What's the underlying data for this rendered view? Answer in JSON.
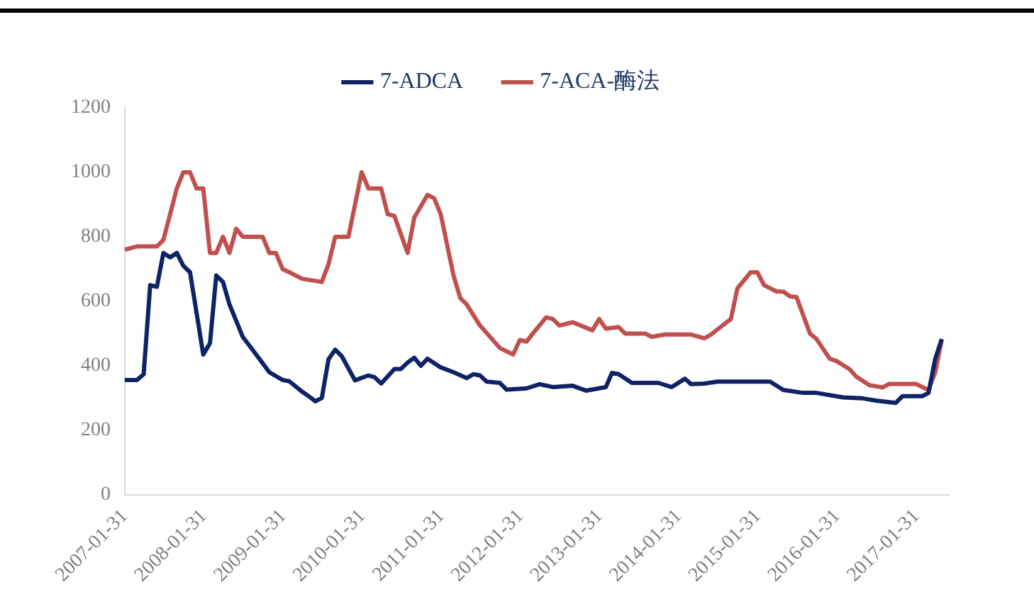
{
  "chart_data": {
    "type": "line",
    "xlim": [
      "2007-01-31",
      "2017-06-30"
    ],
    "xticks": [
      "2007-01-31",
      "2008-01-31",
      "2009-01-31",
      "2010-01-31",
      "2011-01-31",
      "2012-01-31",
      "2013-01-31",
      "2014-01-31",
      "2015-01-31",
      "2016-01-31",
      "2017-01-31"
    ],
    "ylim": [
      0,
      1200
    ],
    "yticks": [
      0,
      200,
      400,
      600,
      800,
      1000,
      1200
    ],
    "grid": false,
    "legend": "top",
    "marker": "none",
    "line_style": "solid",
    "series": [
      {
        "name": "7-ADCA",
        "color": "#0d2366",
        "x": [
          "2007-01-31",
          "2007-03-28",
          "2007-04-28",
          "2007-05-28",
          "2007-06-28",
          "2007-07-28",
          "2007-08-28",
          "2007-09-28",
          "2007-10-28",
          "2007-11-28",
          "2008-01-28",
          "2008-02-28",
          "2008-03-28",
          "2008-04-28",
          "2008-05-28",
          "2008-07-28",
          "2008-09-28",
          "2008-11-28",
          "2009-01-28",
          "2009-02-28",
          "2009-04-28",
          "2009-05-28",
          "2009-06-28",
          "2009-07-28",
          "2009-08-28",
          "2009-09-28",
          "2009-10-28",
          "2009-12-28",
          "2010-02-28",
          "2010-03-28",
          "2010-04-28",
          "2010-06-28",
          "2010-07-28",
          "2010-08-28",
          "2010-09-28",
          "2010-10-28",
          "2010-11-28",
          "2011-01-28",
          "2011-03-28",
          "2011-05-28",
          "2011-06-28",
          "2011-07-28",
          "2011-08-28",
          "2011-10-28",
          "2011-11-28",
          "2012-02-28",
          "2012-04-28",
          "2012-06-28",
          "2012-09-28",
          "2012-11-28",
          "2013-02-28",
          "2013-03-28",
          "2013-04-28",
          "2013-06-28",
          "2013-10-28",
          "2013-12-28",
          "2014-02-28",
          "2014-03-28",
          "2014-05-28",
          "2014-07-28",
          "2015-03-28",
          "2015-05-28",
          "2015-08-28",
          "2015-10-28",
          "2016-02-28",
          "2016-05-28",
          "2016-07-28",
          "2016-10-28",
          "2016-11-28",
          "2017-02-28",
          "2017-03-28",
          "2017-04-28",
          "2017-05-28"
        ],
        "values": [
          356,
          356,
          374,
          650,
          645,
          750,
          736,
          750,
          710,
          690,
          435,
          470,
          680,
          660,
          590,
          490,
          435,
          380,
          356,
          352,
          320,
          306,
          290,
          300,
          420,
          450,
          430,
          355,
          370,
          365,
          345,
          390,
          390,
          410,
          425,
          400,
          422,
          395,
          380,
          362,
          374,
          370,
          351,
          347,
          326,
          330,
          343,
          334,
          338,
          323,
          334,
          378,
          374,
          347,
          347,
          334,
          360,
          343,
          345,
          351,
          351,
          325,
          316,
          316,
          302,
          299,
          292,
          285,
          306,
          306,
          316,
          422,
          483
        ]
      },
      {
        "name": "7-ACA-酶法",
        "color": "#c0504d",
        "x": [
          "2007-01-31",
          "2007-03-28",
          "2007-06-28",
          "2007-07-28",
          "2007-09-28",
          "2007-10-28",
          "2007-11-28",
          "2007-12-28",
          "2008-01-28",
          "2008-02-28",
          "2008-03-28",
          "2008-04-28",
          "2008-05-28",
          "2008-06-28",
          "2008-07-28",
          "2008-10-28",
          "2008-11-28",
          "2008-12-28",
          "2009-01-28",
          "2009-02-28",
          "2009-04-28",
          "2009-07-28",
          "2009-08-28",
          "2009-09-28",
          "2009-11-28",
          "2010-01-28",
          "2010-02-28",
          "2010-04-28",
          "2010-05-28",
          "2010-06-28",
          "2010-08-28",
          "2010-09-28",
          "2010-11-28",
          "2010-12-28",
          "2011-01-28",
          "2011-03-28",
          "2011-04-28",
          "2011-05-28",
          "2011-07-28",
          "2011-10-28",
          "2011-12-28",
          "2012-01-28",
          "2012-02-28",
          "2012-03-28",
          "2012-05-28",
          "2012-06-28",
          "2012-07-28",
          "2012-09-28",
          "2012-12-28",
          "2013-01-28",
          "2013-02-28",
          "2013-04-28",
          "2013-05-28",
          "2013-08-28",
          "2013-09-28",
          "2013-11-28",
          "2014-03-28",
          "2014-05-28",
          "2014-06-28",
          "2014-09-28",
          "2014-10-28",
          "2014-12-28",
          "2015-01-28",
          "2015-02-28",
          "2015-04-28",
          "2015-05-28",
          "2015-06-28",
          "2015-07-28",
          "2015-09-28",
          "2015-10-28",
          "2015-12-28",
          "2016-01-28",
          "2016-03-28",
          "2016-04-28",
          "2016-06-28",
          "2016-08-28",
          "2016-09-28",
          "2017-01-28",
          "2017-03-28",
          "2017-04-28",
          "2017-05-28"
        ],
        "values": [
          760,
          770,
          770,
          790,
          950,
          1000,
          1000,
          950,
          950,
          750,
          750,
          800,
          750,
          825,
          800,
          800,
          750,
          750,
          700,
          690,
          670,
          660,
          715,
          800,
          800,
          1000,
          950,
          950,
          870,
          865,
          750,
          860,
          930,
          920,
          870,
          680,
          610,
          590,
          525,
          455,
          435,
          480,
          475,
          500,
          550,
          545,
          525,
          535,
          510,
          545,
          515,
          520,
          500,
          500,
          490,
          497,
          497,
          485,
          497,
          545,
          640,
          690,
          690,
          650,
          630,
          630,
          615,
          613,
          500,
          483,
          422,
          415,
          390,
          367,
          340,
          333,
          344,
          344,
          325,
          380,
          480
        ]
      }
    ]
  }
}
